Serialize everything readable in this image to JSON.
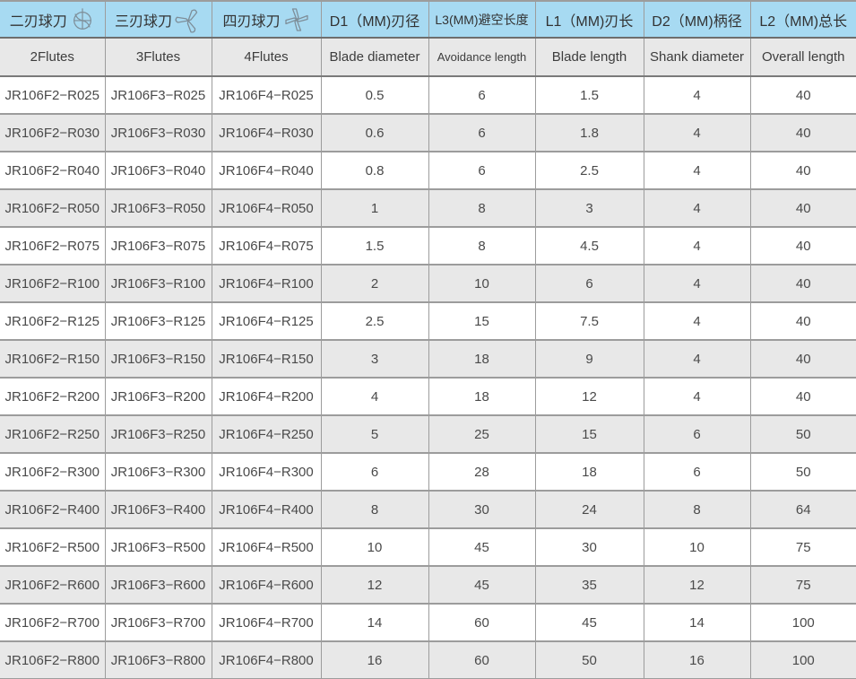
{
  "table": {
    "columns": [
      {
        "zh": "二刃球刀",
        "en": "2Flutes",
        "icon": "two-flute-icon"
      },
      {
        "zh": "三刃球刀",
        "en": "3Flutes",
        "icon": "three-flute-icon"
      },
      {
        "zh": "四刃球刀",
        "en": "4Flutes",
        "icon": "four-flute-icon"
      },
      {
        "zh": "D1（MM)刃径",
        "en": "Blade diameter"
      },
      {
        "zh": "L3(MM)避空长度",
        "en": "Avoidance length"
      },
      {
        "zh": "L1（MM)刃长",
        "en": "Blade length"
      },
      {
        "zh": "D2（MM)柄径",
        "en": "Shank diameter"
      },
      {
        "zh": "L2（MM)总长",
        "en": "Overall length"
      }
    ],
    "rows": [
      [
        "JR106F2−R025",
        "JR106F3−R025",
        "JR106F4−R025",
        "0.5",
        "6",
        "1.5",
        "4",
        "40"
      ],
      [
        "JR106F2−R030",
        "JR106F3−R030",
        "JR106F4−R030",
        "0.6",
        "6",
        "1.8",
        "4",
        "40"
      ],
      [
        "JR106F2−R040",
        "JR106F3−R040",
        "JR106F4−R040",
        "0.8",
        "6",
        "2.5",
        "4",
        "40"
      ],
      [
        "JR106F2−R050",
        "JR106F3−R050",
        "JR106F4−R050",
        "1",
        "8",
        "3",
        "4",
        "40"
      ],
      [
        "JR106F2−R075",
        "JR106F3−R075",
        "JR106F4−R075",
        "1.5",
        "8",
        "4.5",
        "4",
        "40"
      ],
      [
        "JR106F2−R100",
        "JR106F3−R100",
        "JR106F4−R100",
        "2",
        "10",
        "6",
        "4",
        "40"
      ],
      [
        "JR106F2−R125",
        "JR106F3−R125",
        "JR106F4−R125",
        "2.5",
        "15",
        "7.5",
        "4",
        "40"
      ],
      [
        "JR106F2−R150",
        "JR106F3−R150",
        "JR106F4−R150",
        "3",
        "18",
        "9",
        "4",
        "40"
      ],
      [
        "JR106F2−R200",
        "JR106F3−R200",
        "JR106F4−R200",
        "4",
        "18",
        "12",
        "4",
        "40"
      ],
      [
        "JR106F2−R250",
        "JR106F3−R250",
        "JR106F4−R250",
        "5",
        "25",
        "15",
        "6",
        "50"
      ],
      [
        "JR106F2−R300",
        "JR106F3−R300",
        "JR106F4−R300",
        "6",
        "28",
        "18",
        "6",
        "50"
      ],
      [
        "JR106F2−R400",
        "JR106F3−R400",
        "JR106F4−R400",
        "8",
        "30",
        "24",
        "8",
        "64"
      ],
      [
        "JR106F2−R500",
        "JR106F3−R500",
        "JR106F4−R500",
        "10",
        "45",
        "30",
        "10",
        "75"
      ],
      [
        "JR106F2−R600",
        "JR106F3−R600",
        "JR106F4−R600",
        "12",
        "45",
        "35",
        "12",
        "75"
      ],
      [
        "JR106F2−R700",
        "JR106F3−R700",
        "JR106F4−R700",
        "14",
        "60",
        "45",
        "14",
        "100"
      ],
      [
        "JR106F2−R800",
        "JR106F3−R800",
        "JR106F4−R800",
        "16",
        "60",
        "50",
        "16",
        "100"
      ]
    ]
  },
  "colors": {
    "header_blue": "#a7daf2",
    "row_gray": "#e8e8e8",
    "row_white": "#ffffff",
    "border_gray": "#9c9c9c",
    "border_dark": "#1f1f1f",
    "icon_stroke": "#7e8e99",
    "text": "#3d3d3d"
  }
}
